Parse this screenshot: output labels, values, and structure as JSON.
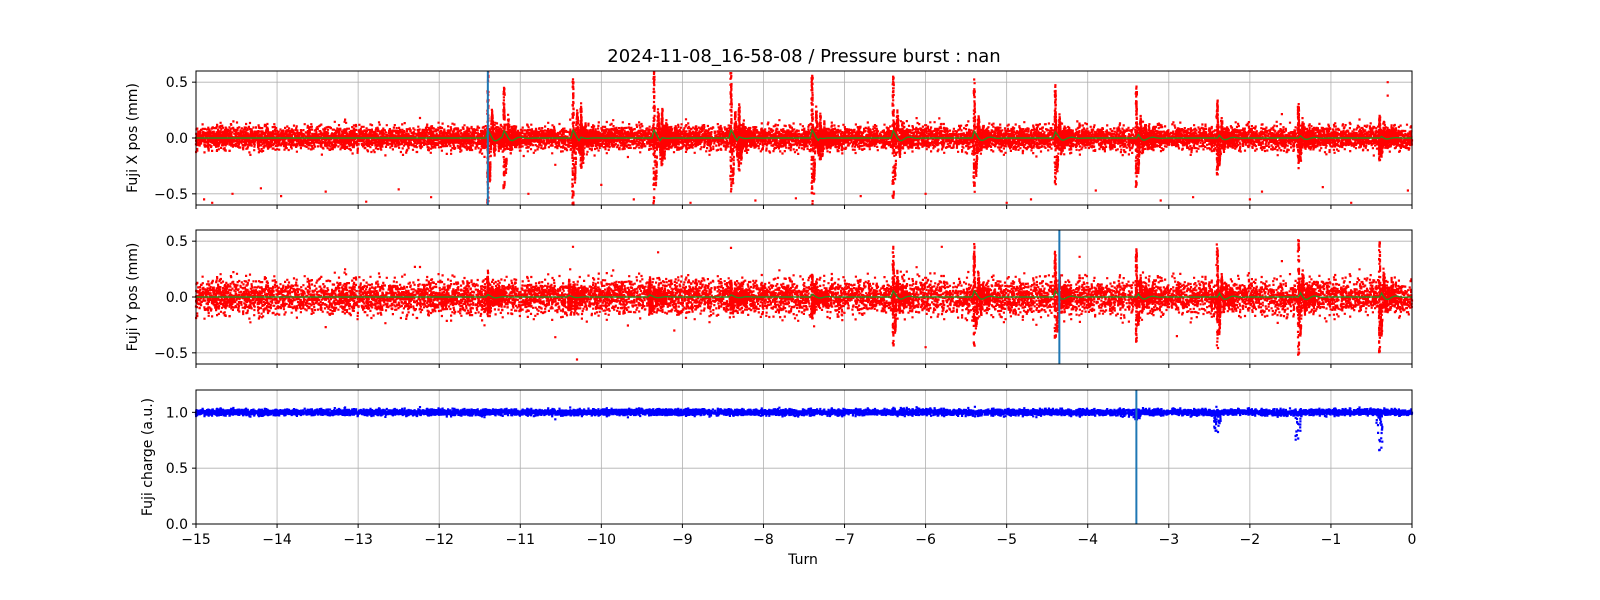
{
  "figure": {
    "title": "2024-11-08_16-58-08 / Pressure burst : nan"
  },
  "chart_data": [
    {
      "type": "scatter",
      "panel": "x-position",
      "ylabel": "Fuji X pos (mm)",
      "xlabel": "",
      "xlim": [
        -15,
        0
      ],
      "ylim": [
        -0.6,
        0.6
      ],
      "x_ticks": [
        -15,
        -14,
        -13,
        -12,
        -11,
        -10,
        -9,
        -8,
        -7,
        -6,
        -5,
        -4,
        -3,
        -2,
        -1,
        0
      ],
      "y_ticks": [
        -0.5,
        0.0,
        0.5
      ],
      "y_tick_labels": [
        "−0.5",
        "0.0",
        "0.5"
      ],
      "grid": true,
      "point_color": "#ff0000",
      "trend_color": "#2e8b20",
      "marker_line_x": -11.4,
      "marker_line_color": "#1f77b4",
      "baseline_noise": 0.05,
      "excursions": [
        {
          "turn": -11.4,
          "amplitude": 0.6
        },
        {
          "turn": -11.2,
          "amplitude": 0.45
        },
        {
          "turn": -10.35,
          "amplitude": 0.6
        },
        {
          "turn": -10.25,
          "amplitude": 0.28
        },
        {
          "turn": -9.35,
          "amplitude": 0.6
        },
        {
          "turn": -9.25,
          "amplitude": 0.25
        },
        {
          "turn": -8.4,
          "amplitude": 0.6
        },
        {
          "turn": -8.3,
          "amplitude": 0.3
        },
        {
          "turn": -7.4,
          "amplitude": 0.6
        },
        {
          "turn": -7.3,
          "amplitude": 0.2
        },
        {
          "turn": -6.4,
          "amplitude": 0.55
        },
        {
          "turn": -5.4,
          "amplitude": 0.5
        },
        {
          "turn": -4.4,
          "amplitude": 0.45
        },
        {
          "turn": -3.4,
          "amplitude": 0.45
        },
        {
          "turn": -2.4,
          "amplitude": 0.35
        },
        {
          "turn": -1.4,
          "amplitude": 0.28
        },
        {
          "turn": -0.4,
          "amplitude": 0.2
        }
      ],
      "outliers": [
        {
          "x": -14.9,
          "y": -0.55
        },
        {
          "x": -14.8,
          "y": -0.58
        },
        {
          "x": -14.55,
          "y": -0.5
        },
        {
          "x": -14.2,
          "y": -0.45
        },
        {
          "x": -13.95,
          "y": -0.52
        },
        {
          "x": -13.4,
          "y": -0.48
        },
        {
          "x": -12.9,
          "y": -0.57
        },
        {
          "x": -12.5,
          "y": -0.46
        },
        {
          "x": -12.1,
          "y": -0.53
        },
        {
          "x": -10.9,
          "y": -0.5
        },
        {
          "x": -10.0,
          "y": -0.42
        },
        {
          "x": -9.6,
          "y": -0.55
        },
        {
          "x": -8.9,
          "y": -0.58
        },
        {
          "x": -8.1,
          "y": -0.56
        },
        {
          "x": -7.6,
          "y": -0.54
        },
        {
          "x": -6.8,
          "y": -0.52
        },
        {
          "x": -6.0,
          "y": -0.5
        },
        {
          "x": -5.0,
          "y": -0.58
        },
        {
          "x": -4.7,
          "y": -0.55
        },
        {
          "x": -3.9,
          "y": -0.47
        },
        {
          "x": -3.1,
          "y": -0.56
        },
        {
          "x": -2.7,
          "y": -0.53
        },
        {
          "x": -2.0,
          "y": -0.55
        },
        {
          "x": -1.85,
          "y": -0.48
        },
        {
          "x": -1.1,
          "y": -0.44
        },
        {
          "x": -0.75,
          "y": -0.58
        },
        {
          "x": -0.3,
          "y": 0.5
        },
        {
          "x": -0.3,
          "y": 0.38
        },
        {
          "x": -0.05,
          "y": -0.47
        }
      ]
    },
    {
      "type": "scatter",
      "panel": "y-position",
      "ylabel": "Fuji Y pos (mm)",
      "xlabel": "",
      "xlim": [
        -15,
        0
      ],
      "ylim": [
        -0.6,
        0.6
      ],
      "x_ticks": [
        -15,
        -14,
        -13,
        -12,
        -11,
        -10,
        -9,
        -8,
        -7,
        -6,
        -5,
        -4,
        -3,
        -2,
        -1,
        0
      ],
      "y_ticks": [
        -0.5,
        0.0,
        0.5
      ],
      "y_tick_labels": [
        "−0.5",
        "0.0",
        "0.5"
      ],
      "grid": true,
      "point_color": "#ff0000",
      "trend_color": "#2e8b20",
      "marker_line_x": -4.35,
      "marker_line_color": "#1f77b4",
      "baseline_noise": 0.075,
      "excursions": [
        {
          "turn": -11.4,
          "amplitude": 0.18
        },
        {
          "turn": -10.4,
          "amplitude": 0.12
        },
        {
          "turn": -9.4,
          "amplitude": 0.15
        },
        {
          "turn": -8.4,
          "amplitude": 0.15
        },
        {
          "turn": -7.4,
          "amplitude": 0.2
        },
        {
          "turn": -6.4,
          "amplitude": 0.45
        },
        {
          "turn": -5.4,
          "amplitude": 0.45
        },
        {
          "turn": -4.4,
          "amplitude": 0.45
        },
        {
          "turn": -3.4,
          "amplitude": 0.4
        },
        {
          "turn": -2.4,
          "amplitude": 0.48
        },
        {
          "turn": -1.4,
          "amplitude": 0.52
        },
        {
          "turn": -0.4,
          "amplitude": 0.5
        }
      ],
      "outliers": [
        {
          "x": -10.35,
          "y": 0.45
        },
        {
          "x": -10.3,
          "y": -0.56
        },
        {
          "x": -9.3,
          "y": 0.4
        },
        {
          "x": -8.4,
          "y": 0.44
        },
        {
          "x": -6.0,
          "y": -0.45
        },
        {
          "x": -5.8,
          "y": 0.45
        },
        {
          "x": -4.1,
          "y": 0.36
        },
        {
          "x": -13.4,
          "y": -0.27
        },
        {
          "x": -12.3,
          "y": 0.27
        },
        {
          "x": -9.1,
          "y": -0.3
        },
        {
          "x": -2.9,
          "y": -0.35
        }
      ]
    },
    {
      "type": "scatter",
      "panel": "charge",
      "ylabel": "Fuji charge (a.u.)",
      "xlabel": "Turn",
      "xlim": [
        -15,
        0
      ],
      "ylim": [
        0.0,
        1.2
      ],
      "x_ticks": [
        -15,
        -14,
        -13,
        -12,
        -11,
        -10,
        -9,
        -8,
        -7,
        -6,
        -5,
        -4,
        -3,
        -2,
        -1,
        0
      ],
      "x_tick_labels": [
        "−15",
        "−14",
        "−13",
        "−12",
        "−11",
        "−10",
        "−9",
        "−8",
        "−7",
        "−6",
        "−5",
        "−4",
        "−3",
        "−2",
        "−1",
        "0"
      ],
      "y_ticks": [
        0.0,
        0.5,
        1.0
      ],
      "y_tick_labels": [
        "0.0",
        "0.5",
        "1.0"
      ],
      "grid": true,
      "point_color": "#0000ff",
      "baseline_value": 1.0,
      "baseline_noise": 0.013,
      "marker_line_x": -3.4,
      "marker_line_color": "#1f77b4",
      "dips": [
        {
          "turn": -3.4,
          "min": 0.92
        },
        {
          "turn": -2.4,
          "min": 0.82
        },
        {
          "turn": -1.4,
          "min": 0.74
        },
        {
          "turn": -0.4,
          "min": 0.64
        }
      ]
    }
  ]
}
